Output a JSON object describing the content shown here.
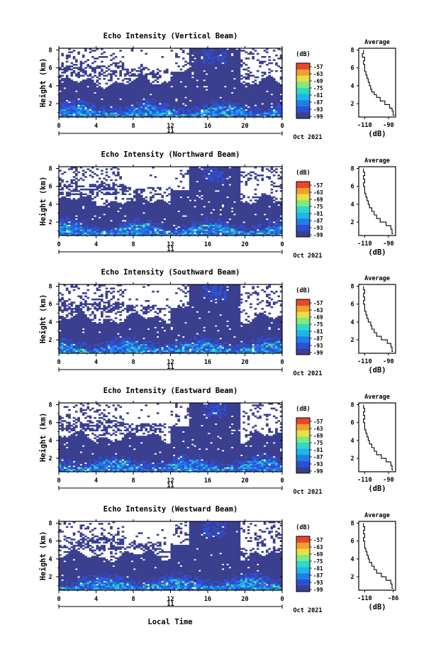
{
  "chart_data": [
    {
      "type": "heatmap",
      "title": "Echo Intensity (Vertical Beam)",
      "ylabel": "Height (km)",
      "x_ticks": [
        "0",
        "4",
        "8",
        "12",
        "16",
        "20",
        "0"
      ],
      "y_ticks": [
        "2",
        "4",
        "6",
        "8"
      ],
      "xlim": [
        0,
        24
      ],
      "ylim": [
        0.5,
        8.2
      ],
      "date_day": "11",
      "date_label": "Oct 2021",
      "colorbar": {
        "unit": "(dB)",
        "levels": [
          -57,
          -63,
          -69,
          -75,
          -81,
          -87,
          -93,
          -99
        ]
      },
      "average": {
        "title": "Average",
        "xlabel": "(dB)",
        "x_ticks": [
          "-110",
          "-90"
        ],
        "y_ticks": [
          "2",
          "4",
          "6",
          "8"
        ],
        "xlim": [
          -115,
          -84
        ],
        "height": [
          0.7,
          1.2,
          1.5,
          1.9,
          2.3,
          2.7,
          3.0,
          3.3,
          3.6,
          4.0,
          4.4,
          4.8,
          5.2,
          5.6,
          6.0,
          6.4,
          6.8,
          7.2,
          7.6,
          8.0
        ],
        "power": [
          -85,
          -86,
          -87,
          -89,
          -93,
          -97,
          -100,
          -102,
          -104,
          -105,
          -106,
          -107,
          -108,
          -109,
          -110,
          -110,
          -111,
          -110,
          -112,
          -111
        ]
      }
    },
    {
      "type": "heatmap",
      "title": "Echo Intensity (Northward Beam)",
      "ylabel": "Height (km)",
      "x_ticks": [
        "0",
        "4",
        "8",
        "12",
        "16",
        "20",
        "0"
      ],
      "y_ticks": [
        "2",
        "4",
        "6",
        "8"
      ],
      "xlim": [
        0,
        24
      ],
      "ylim": [
        0.5,
        8.2
      ],
      "date_day": "11",
      "date_label": "Oct 2021",
      "colorbar": {
        "unit": "(dB)",
        "levels": [
          -57,
          -63,
          -69,
          -75,
          -81,
          -87,
          -93,
          -99
        ]
      },
      "average": {
        "title": "Average",
        "xlabel": "(dB)",
        "x_ticks": [
          "-110",
          "-90"
        ],
        "y_ticks": [
          "2",
          "4",
          "6",
          "8"
        ],
        "xlim": [
          -115,
          -84
        ],
        "height": [
          0.7,
          1.2,
          1.6,
          2.0,
          2.4,
          2.8,
          3.2,
          3.6,
          4.0,
          4.4,
          4.8,
          5.2,
          5.6,
          6.0,
          6.4,
          6.8,
          7.2,
          7.6,
          8.0
        ],
        "power": [
          -86,
          -87,
          -88,
          -92,
          -97,
          -100,
          -102,
          -104,
          -106,
          -107,
          -108,
          -109,
          -110,
          -110,
          -111,
          -110,
          -111,
          -110,
          -111
        ]
      }
    },
    {
      "type": "heatmap",
      "title": "Echo Intensity (Southward Beam)",
      "ylabel": "Height (km)",
      "x_ticks": [
        "0",
        "4",
        "8",
        "12",
        "16",
        "20",
        "0"
      ],
      "y_ticks": [
        "2",
        "4",
        "6",
        "8"
      ],
      "xlim": [
        0,
        24
      ],
      "ylim": [
        0.5,
        8.2
      ],
      "date_day": "11",
      "date_label": "Oct 2021",
      "colorbar": {
        "unit": "(dB)",
        "levels": [
          -57,
          -63,
          -69,
          -75,
          -81,
          -87,
          -93,
          -99
        ]
      },
      "average": {
        "title": "Average",
        "xlabel": "(dB)",
        "x_ticks": [
          "-110",
          "-90"
        ],
        "y_ticks": [
          "2",
          "4",
          "6",
          "8"
        ],
        "xlim": [
          -115,
          -84
        ],
        "height": [
          0.7,
          1.2,
          1.6,
          2.0,
          2.4,
          2.8,
          3.2,
          3.6,
          4.0,
          4.4,
          4.8,
          5.2,
          5.6,
          6.0,
          6.4,
          6.8,
          7.2,
          7.6,
          8.0
        ],
        "power": [
          -86,
          -87,
          -88,
          -91,
          -96,
          -100,
          -102,
          -104,
          -105,
          -107,
          -108,
          -109,
          -110,
          -110,
          -111,
          -110,
          -111,
          -110,
          -111
        ]
      }
    },
    {
      "type": "heatmap",
      "title": "Echo Intensity (Eastward Beam)",
      "ylabel": "Height (km)",
      "x_ticks": [
        "0",
        "4",
        "8",
        "12",
        "16",
        "20",
        "0"
      ],
      "y_ticks": [
        "2",
        "4",
        "6",
        "8"
      ],
      "xlim": [
        0,
        24
      ],
      "ylim": [
        0.5,
        8.2
      ],
      "date_day": "11",
      "date_label": "Oct 2021",
      "colorbar": {
        "unit": "(dB)",
        "levels": [
          -57,
          -63,
          -69,
          -75,
          -81,
          -87,
          -93,
          -99
        ]
      },
      "average": {
        "title": "Average",
        "xlabel": "(dB)",
        "x_ticks": [
          "-110",
          "-90"
        ],
        "y_ticks": [
          "2",
          "4",
          "6",
          "8"
        ],
        "xlim": [
          -115,
          -84
        ],
        "height": [
          0.7,
          1.2,
          1.6,
          2.0,
          2.4,
          2.8,
          3.2,
          3.6,
          4.0,
          4.4,
          4.8,
          5.2,
          5.6,
          6.0,
          6.4,
          6.8,
          7.2,
          7.6,
          8.0
        ],
        "power": [
          -86,
          -87,
          -88,
          -92,
          -96,
          -100,
          -102,
          -104,
          -106,
          -107,
          -108,
          -109,
          -110,
          -110,
          -111,
          -110,
          -111,
          -110,
          -111
        ]
      }
    },
    {
      "type": "heatmap",
      "title": "Echo Intensity (Westward Beam)",
      "ylabel": "Height (km)",
      "x_ticks": [
        "0",
        "4",
        "8",
        "12",
        "16",
        "20",
        "0"
      ],
      "y_ticks": [
        "2",
        "4",
        "6",
        "8"
      ],
      "xlim": [
        0,
        24
      ],
      "ylim": [
        0.5,
        8.2
      ],
      "date_day": "11",
      "date_label": "Oct 2021",
      "colorbar": {
        "unit": "(dB)",
        "levels": [
          -57,
          -63,
          -69,
          -75,
          -81,
          -87,
          -93,
          -99
        ]
      },
      "average": {
        "title": "Average",
        "xlabel": "(dB)",
        "x_ticks": [
          "-110",
          "-86"
        ],
        "y_ticks": [
          "2",
          "4",
          "6",
          "8"
        ],
        "xlim": [
          -115,
          -84
        ],
        "height": [
          0.7,
          1.2,
          1.6,
          2.0,
          2.4,
          2.8,
          3.2,
          3.6,
          4.0,
          4.4,
          4.8,
          5.2,
          5.6,
          6.0,
          6.4,
          6.8,
          7.2,
          7.6,
          8.0
        ],
        "power": [
          -86,
          -87,
          -88,
          -92,
          -96,
          -100,
          -102,
          -104,
          -106,
          -107,
          -108,
          -109,
          -110,
          -110,
          -111,
          -110,
          -111,
          -110,
          -111
        ]
      }
    }
  ],
  "xlabel_bottom": "Local Time",
  "colormap": [
    "#3b3f8f",
    "#2f4fd6",
    "#1f7fe8",
    "#1fb5e8",
    "#2fd8c8",
    "#7fe87f",
    "#e8e040",
    "#f0a030",
    "#e84828"
  ]
}
